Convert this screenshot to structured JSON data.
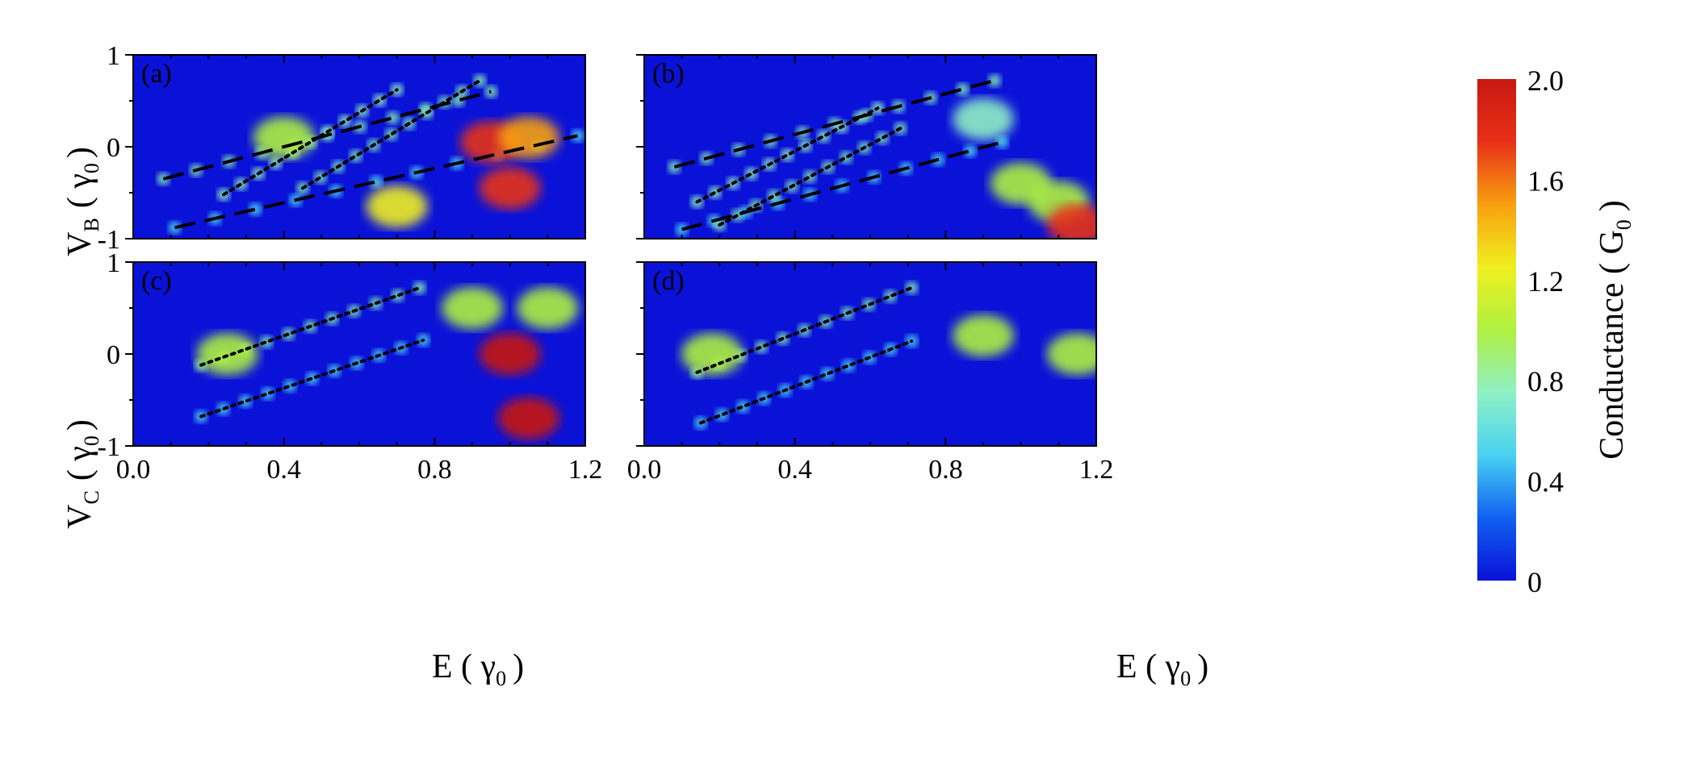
{
  "figure": {
    "colorbar": {
      "label": "Conductance ( G",
      "label_sub": "0",
      "label_close": ")",
      "ticks": [
        "0",
        "0.4",
        "0.8",
        "1.2",
        "1.6",
        "2.0"
      ],
      "range": [
        0,
        2.0
      ],
      "colormap": [
        "#0a12d8",
        "#1060f0",
        "#49d2f2",
        "#8ff0c4",
        "#aff040",
        "#f0f020",
        "#f8a010",
        "#e83018",
        "#c81810"
      ]
    },
    "x_tick_labels": [
      "0.0",
      "0.4",
      "0.8",
      "1.2"
    ],
    "xlabel": {
      "main": "E ( γ",
      "sub": "0",
      "close": ")"
    },
    "ylabel_top": {
      "main": "V",
      "sub1": "B",
      "mid": "( γ",
      "sub2": "0",
      "close": ")"
    },
    "ylabel_bottom": {
      "main": "V",
      "sub1": "C",
      "mid": "( γ",
      "sub2": "0",
      "close": ")"
    },
    "y_tick_labels": [
      "1",
      "0",
      "-1"
    ]
  },
  "chart_data": [
    {
      "type": "heatmap",
      "panel": "(a)",
      "xlim": [
        0,
        1.2
      ],
      "ylim": [
        -1,
        1
      ],
      "ylabel": "V_B (γ0)",
      "guide_lines": [
        {
          "style": "dashed",
          "from": [
            0.08,
            -0.35
          ],
          "to": [
            0.95,
            0.6
          ]
        },
        {
          "style": "dashed",
          "from": [
            0.11,
            -0.88
          ],
          "to": [
            1.18,
            0.12
          ]
        },
        {
          "style": "dotted",
          "from": [
            0.24,
            -0.52
          ],
          "to": [
            0.7,
            0.62
          ]
        },
        {
          "style": "dotted",
          "from": [
            0.45,
            -0.45
          ],
          "to": [
            0.92,
            0.72
          ]
        }
      ]
    },
    {
      "type": "heatmap",
      "panel": "(b)",
      "xlim": [
        0,
        1.2
      ],
      "ylim": [
        -1,
        1
      ],
      "ylabel": "V_B (γ0)",
      "guide_lines": [
        {
          "style": "dashed",
          "from": [
            0.08,
            -0.22
          ],
          "to": [
            0.93,
            0.72
          ]
        },
        {
          "style": "dashed",
          "from": [
            0.1,
            -0.9
          ],
          "to": [
            0.95,
            0.05
          ]
        },
        {
          "style": "dotted",
          "from": [
            0.14,
            -0.6
          ],
          "to": [
            0.62,
            0.42
          ]
        },
        {
          "style": "dotted",
          "from": [
            0.2,
            -0.85
          ],
          "to": [
            0.68,
            0.2
          ]
        }
      ]
    },
    {
      "type": "heatmap",
      "panel": "(c)",
      "xlim": [
        0,
        1.2
      ],
      "ylim": [
        -1,
        1
      ],
      "ylabel": "V_C (γ0)",
      "guide_lines": [
        {
          "style": "dotted",
          "from": [
            0.18,
            -0.12
          ],
          "to": [
            0.76,
            0.72
          ]
        },
        {
          "style": "dotted",
          "from": [
            0.18,
            -0.68
          ],
          "to": [
            0.77,
            0.15
          ]
        }
      ]
    },
    {
      "type": "heatmap",
      "panel": "(d)",
      "xlim": [
        0,
        1.2
      ],
      "ylim": [
        -1,
        1
      ],
      "ylabel": "V_C (γ0)",
      "guide_lines": [
        {
          "style": "dotted",
          "from": [
            0.14,
            -0.2
          ],
          "to": [
            0.71,
            0.72
          ]
        },
        {
          "style": "dotted",
          "from": [
            0.15,
            -0.75
          ],
          "to": [
            0.71,
            0.14
          ]
        }
      ]
    }
  ]
}
